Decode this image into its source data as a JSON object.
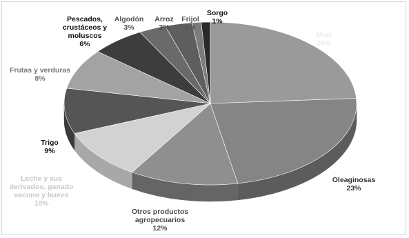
{
  "chart_data": {
    "type": "pie",
    "title": "",
    "style": "3d",
    "slices": [
      {
        "label_lines": [
          "Maíz"
        ],
        "pct_label": "24%",
        "value": 24,
        "color": "#9a9a9a",
        "side_color": "#6d6d6d",
        "label_color": "#eaeaea"
      },
      {
        "label_lines": [
          "Oleaginosas"
        ],
        "pct_label": "23%",
        "value": 23,
        "color": "#858585",
        "side_color": "#5c5c5c",
        "label_color": "#333333"
      },
      {
        "label_lines": [
          "Otros productos",
          "agropecuarios"
        ],
        "pct_label": "12%",
        "value": 12,
        "color": "#8f8f8f",
        "side_color": "#656565",
        "label_color": "#4a4a4a"
      },
      {
        "label_lines": [
          "Leche y sus",
          "derivados, ganado",
          "vacuno y huevo"
        ],
        "pct_label": "10%",
        "value": 10,
        "color": "#d2d2d2",
        "side_color": "#a8a8a8",
        "label_color": "#c8c8c8"
      },
      {
        "label_lines": [
          "Trigo"
        ],
        "pct_label": "9%",
        "value": 9,
        "color": "#555555",
        "side_color": "#3a3a3a",
        "label_color": "#111111"
      },
      {
        "label_lines": [
          "Frutas y verduras"
        ],
        "pct_label": "8%",
        "value": 8,
        "color": "#a3a3a3",
        "side_color": "#777777",
        "label_color": "#777777"
      },
      {
        "label_lines": [
          "Pescados,",
          "crustáceos y",
          "moluscos"
        ],
        "pct_label": "6%",
        "value": 6,
        "color": "#3d3d3d",
        "side_color": "#2a2a2a",
        "label_color": "#111111"
      },
      {
        "label_lines": [
          "Algodón"
        ],
        "pct_label": "3%",
        "value": 3,
        "color": "#6a6a6a",
        "side_color": "#4a4a4a",
        "label_color": "#555555"
      },
      {
        "label_lines": [
          "Arroz"
        ],
        "pct_label": "3%",
        "value": 3,
        "color": "#5e5e5e",
        "side_color": "#404040",
        "label_color": "#444444"
      },
      {
        "label_lines": [
          "Frijol"
        ],
        "pct_label": "1%",
        "value": 1,
        "color": "#7c7c7c",
        "side_color": "#555555",
        "label_color": "#555555"
      },
      {
        "label_lines": [
          "Sorgo"
        ],
        "pct_label": "1%",
        "value": 1,
        "color": "#2a2a2a",
        "side_color": "#1a1a1a",
        "label_color": "#111111"
      }
    ]
  }
}
